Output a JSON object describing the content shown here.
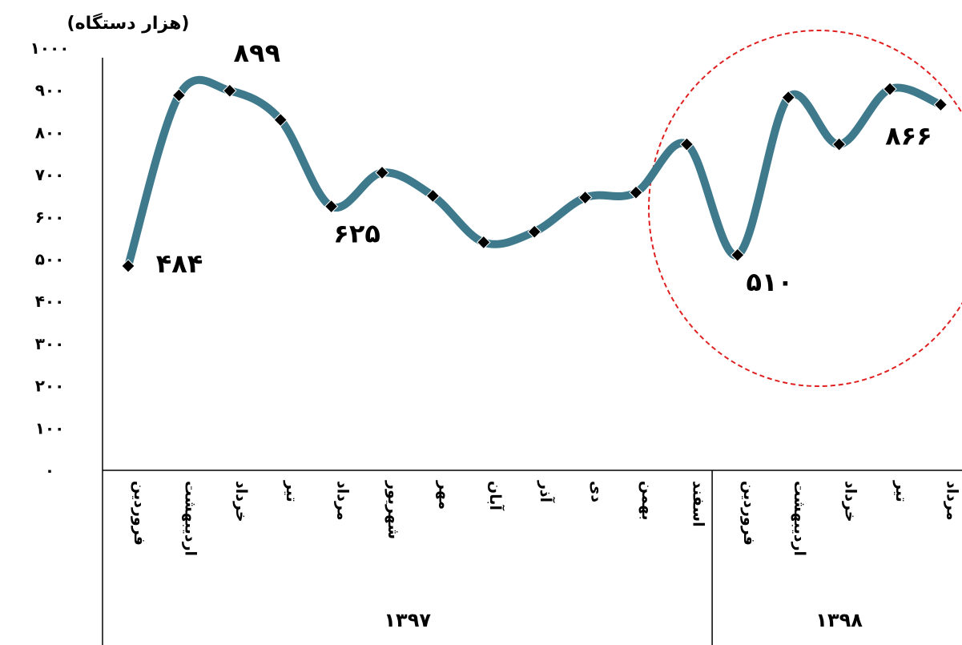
{
  "chart_data": {
    "type": "line",
    "title": "",
    "ylabel": "(هزار دستگاه)",
    "xlabel": "",
    "ylim": [
      0,
      1000
    ],
    "yticks": [
      0,
      100,
      200,
      300,
      400,
      500,
      600,
      700,
      800,
      900,
      1000
    ],
    "ytick_labels": [
      "۰",
      "۱۰۰",
      "۲۰۰",
      "۳۰۰",
      "۴۰۰",
      "۵۰۰",
      "۶۰۰",
      "۷۰۰",
      "۸۰۰",
      "۹۰۰",
      "۱۰۰۰"
    ],
    "grid": false,
    "categories": [
      "فروردین",
      "اردیبهشت",
      "خرداد",
      "تیر",
      "مرداد",
      "شهریور",
      "مهر",
      "آبان",
      "آذر",
      "دی",
      "بهمن",
      "اسفند",
      "فروردین",
      "اردیبهشت",
      "خرداد",
      "تیر",
      "مرداد"
    ],
    "groups": [
      {
        "label": "۱۳۹۷",
        "count": 12
      },
      {
        "label": "۱۳۹۸",
        "count": 5
      }
    ],
    "series": [
      {
        "values": [
          484,
          888,
          899,
          830,
          625,
          705,
          650,
          540,
          565,
          646,
          658,
          772,
          510,
          883,
          772,
          903,
          866
        ]
      }
    ],
    "data_labels": [
      {
        "index": 0,
        "text": "۴۸۴"
      },
      {
        "index": 2,
        "text": "۸۹۹"
      },
      {
        "index": 4,
        "text": "۶۲۵"
      },
      {
        "index": 12,
        "text": "۵۱۰"
      },
      {
        "index": 16,
        "text": "۸۶۶"
      }
    ],
    "line_color": "#3f7a8c",
    "marker_color": "#000000",
    "highlight_color": "#e02020"
  }
}
